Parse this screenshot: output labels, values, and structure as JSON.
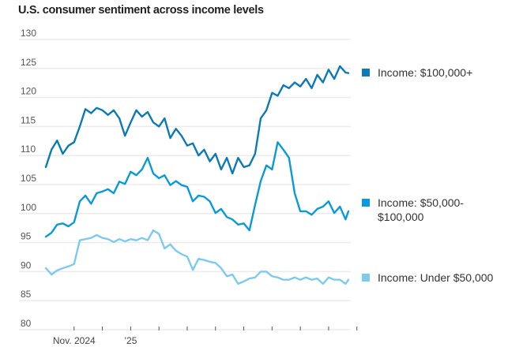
{
  "chart_data": {
    "type": "line",
    "title": "U.S. consumer sentiment across income levels",
    "xlabel": "",
    "ylabel": "",
    "x_unit": "months since Nov. 1, 2024",
    "xlim": [
      -1.0,
      9.7
    ],
    "ylim": [
      80,
      130
    ],
    "yticks": [
      80,
      85,
      90,
      95,
      100,
      105,
      110,
      115,
      120,
      125,
      130
    ],
    "xticks": [
      {
        "value": 0,
        "label": "Nov. 2024"
      },
      {
        "value": 1,
        "label": ""
      },
      {
        "value": 2,
        "label": "’25"
      },
      {
        "value": 3,
        "label": ""
      },
      {
        "value": 4,
        "label": ""
      },
      {
        "value": 5,
        "label": ""
      },
      {
        "value": 6,
        "label": ""
      },
      {
        "value": 7,
        "label": ""
      },
      {
        "value": 8,
        "label": ""
      },
      {
        "value": 9,
        "label": ""
      },
      {
        "value": 10,
        "label": ""
      }
    ],
    "grid": true,
    "legend_placement": "right",
    "x": [
      -1.0,
      -0.8,
      -0.6,
      -0.4,
      -0.2,
      0.0,
      0.2,
      0.4,
      0.6,
      0.8,
      1.0,
      1.2,
      1.4,
      1.6,
      1.8,
      2.0,
      2.2,
      2.4,
      2.6,
      2.8,
      3.0,
      3.2,
      3.4,
      3.6,
      3.8,
      4.0,
      4.2,
      4.4,
      4.6,
      4.8,
      5.0,
      5.2,
      5.4,
      5.6,
      5.8,
      6.0,
      6.2,
      6.4,
      6.6,
      6.8,
      7.0,
      7.2,
      7.4,
      7.6,
      7.8,
      8.0,
      8.2,
      8.4,
      8.6,
      8.8,
      9.0,
      9.2,
      9.4,
      9.6,
      9.7
    ],
    "series": [
      {
        "name": "Income: $100,000+",
        "color": "#0b7ab5",
        "values": [
          108,
          111,
          112.6,
          110.3,
          111.7,
          112.3,
          115,
          118,
          117.3,
          118.2,
          117.8,
          117,
          117.8,
          116.4,
          113.4,
          115.7,
          117.8,
          116.7,
          117.5,
          115.7,
          115,
          116.4,
          113,
          114.6,
          113.4,
          111.7,
          112.1,
          110,
          111,
          109,
          110.3,
          107.6,
          109.6,
          106.9,
          109.6,
          108,
          108.3,
          110.3,
          116.4,
          117.8,
          120.8,
          120.3,
          122.1,
          121.6,
          122.6,
          121.9,
          123.2,
          121.6,
          123.9,
          122.6,
          124.8,
          123.2,
          125.4,
          124.3,
          124.2
        ]
      },
      {
        "name": "Income: $50,000-$100,000",
        "color": "#0a9ad8",
        "values": [
          96,
          96.7,
          98.1,
          98.3,
          97.8,
          98.5,
          102.1,
          103.1,
          101.7,
          103.5,
          103.8,
          104.2,
          103.5,
          105.5,
          105.1,
          107.2,
          106.6,
          107.6,
          109.6,
          106.9,
          106.1,
          106.6,
          104.9,
          105.6,
          104.9,
          104.6,
          102.1,
          103.1,
          102.9,
          102.1,
          100.1,
          100.8,
          99.4,
          99,
          98.1,
          98.3,
          97.1,
          101.5,
          105.6,
          108.3,
          107.6,
          112.3,
          111,
          109.6,
          103.5,
          100.4,
          100.4,
          99.8,
          100.8,
          101.2,
          102.1,
          100.1,
          101.2,
          99,
          100.4
        ]
      },
      {
        "name": "Income: Under $50,000",
        "color": "#7ccbef",
        "values": [
          90.6,
          89.5,
          90.2,
          90.6,
          90.9,
          91.3,
          95.4,
          95.6,
          95.8,
          96.3,
          95.8,
          95.6,
          95.1,
          95.6,
          95.2,
          95.6,
          95.4,
          95.8,
          95.4,
          97.1,
          96.5,
          94,
          94.7,
          93.6,
          93,
          92.6,
          90.3,
          92.2,
          92,
          91.7,
          91.5,
          90.6,
          89.2,
          89.5,
          87.9,
          88.3,
          88.8,
          89,
          90,
          90,
          89.2,
          89,
          88.6,
          88.6,
          89,
          88.6,
          89,
          88.6,
          88.8,
          87.9,
          89,
          88.6,
          88.6,
          87.9,
          88.6
        ]
      }
    ]
  },
  "legend": [
    {
      "label_line1": "Income: $100,000+",
      "label_line2": "",
      "color": "#0b7ab5"
    },
    {
      "label_line1": "Income: $50,000-",
      "label_line2": "$100,000",
      "color": "#0a9ad8"
    },
    {
      "label_line1": "Income: Under $50,000",
      "label_line2": "",
      "color": "#7ccbef"
    }
  ]
}
